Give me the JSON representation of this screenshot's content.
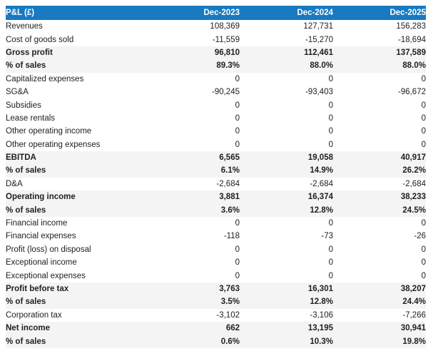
{
  "chart_data": {
    "type": "table",
    "title": "P&L (£)",
    "columns": [
      "Dec-2023",
      "Dec-2024",
      "Dec-2025"
    ],
    "rows": [
      {
        "label": "Revenues",
        "values": [
          "108,369",
          "127,731",
          "156,283"
        ],
        "emphasis": false
      },
      {
        "label": "Cost of goods sold",
        "values": [
          "-11,559",
          "-15,270",
          "-18,694"
        ],
        "emphasis": false
      },
      {
        "label": "Gross profit",
        "values": [
          "96,810",
          "112,461",
          "137,589"
        ],
        "emphasis": true
      },
      {
        "label": "% of sales",
        "values": [
          "89.3%",
          "88.0%",
          "88.0%"
        ],
        "emphasis": true
      },
      {
        "label": "Capitalized expenses",
        "values": [
          "0",
          "0",
          "0"
        ],
        "emphasis": false
      },
      {
        "label": "SG&A",
        "values": [
          "-90,245",
          "-93,403",
          "-96,672"
        ],
        "emphasis": false
      },
      {
        "label": "Subsidies",
        "values": [
          "0",
          "0",
          "0"
        ],
        "emphasis": false
      },
      {
        "label": "Lease rentals",
        "values": [
          "0",
          "0",
          "0"
        ],
        "emphasis": false
      },
      {
        "label": "Other operating income",
        "values": [
          "0",
          "0",
          "0"
        ],
        "emphasis": false
      },
      {
        "label": "Other operating expenses",
        "values": [
          "0",
          "0",
          "0"
        ],
        "emphasis": false
      },
      {
        "label": "EBITDA",
        "values": [
          "6,565",
          "19,058",
          "40,917"
        ],
        "emphasis": true
      },
      {
        "label": "% of sales",
        "values": [
          "6.1%",
          "14.9%",
          "26.2%"
        ],
        "emphasis": true
      },
      {
        "label": "D&A",
        "values": [
          "-2,684",
          "-2,684",
          "-2,684"
        ],
        "emphasis": false
      },
      {
        "label": "Operating income",
        "values": [
          "3,881",
          "16,374",
          "38,233"
        ],
        "emphasis": true
      },
      {
        "label": "% of sales",
        "values": [
          "3.6%",
          "12.8%",
          "24.5%"
        ],
        "emphasis": true
      },
      {
        "label": "Financial income",
        "values": [
          "0",
          "0",
          "0"
        ],
        "emphasis": false
      },
      {
        "label": "Financial expenses",
        "values": [
          "-118",
          "-73",
          "-26"
        ],
        "emphasis": false
      },
      {
        "label": "Profit (loss) on disposal",
        "values": [
          "0",
          "0",
          "0"
        ],
        "emphasis": false
      },
      {
        "label": "Exceptional income",
        "values": [
          "0",
          "0",
          "0"
        ],
        "emphasis": false
      },
      {
        "label": "Exceptional expenses",
        "values": [
          "0",
          "0",
          "0"
        ],
        "emphasis": false
      },
      {
        "label": "Profit before tax",
        "values": [
          "3,763",
          "16,301",
          "38,207"
        ],
        "emphasis": true
      },
      {
        "label": "% of sales",
        "values": [
          "3.5%",
          "12.8%",
          "24.4%"
        ],
        "emphasis": true
      },
      {
        "label": "Corporation tax",
        "values": [
          "-3,102",
          "-3,106",
          "-7,266"
        ],
        "emphasis": false
      },
      {
        "label": "Net income",
        "values": [
          "662",
          "13,195",
          "30,941"
        ],
        "emphasis": true
      },
      {
        "label": "% of sales",
        "values": [
          "0.6%",
          "10.3%",
          "19.8%"
        ],
        "emphasis": true
      }
    ],
    "layout": {
      "legend": "none",
      "grid": "off",
      "value_alignment": "right",
      "striped_emphasis_rows": true
    }
  },
  "colors": {
    "header_bg": "#187AC1",
    "header_text": "#FFFFFF",
    "row_stripe_bg": "#F4F4F4",
    "body_text": "#212121",
    "background": "#FFFFFF"
  }
}
